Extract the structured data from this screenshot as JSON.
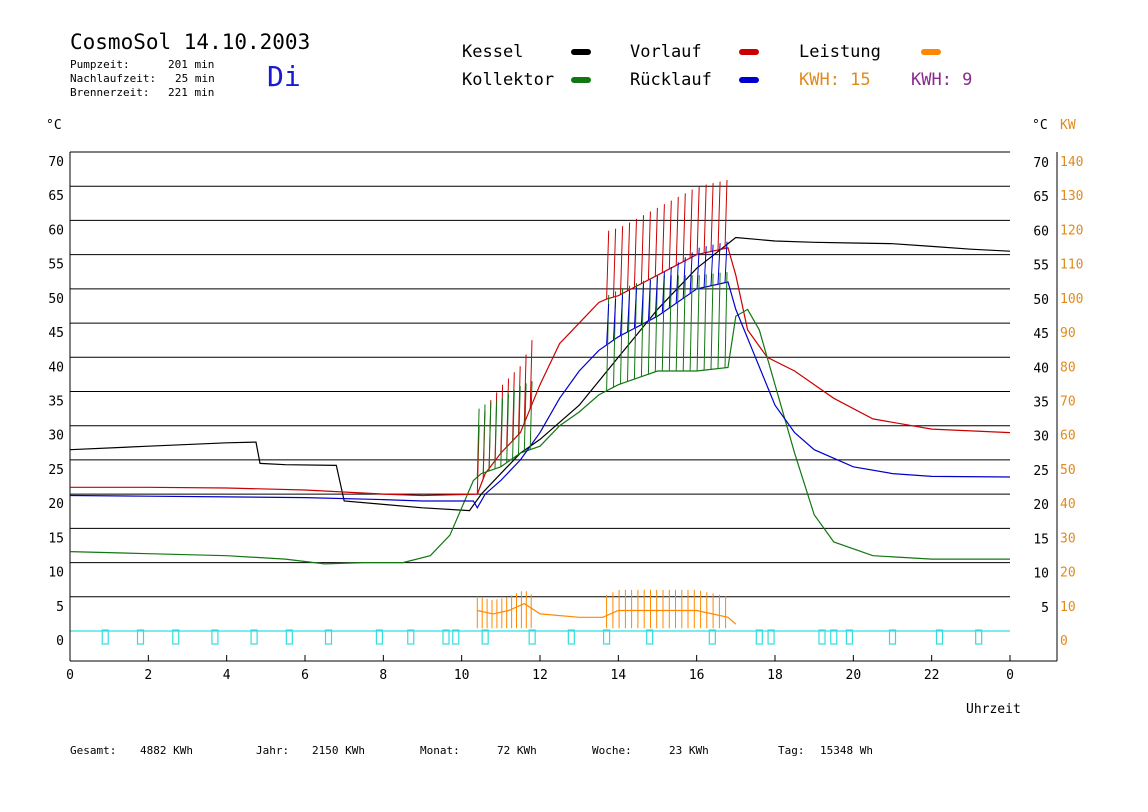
{
  "header": {
    "title": "CosmoSol 14.10.2003",
    "day": "Di",
    "stats": [
      {
        "label": "Pumpzeit:",
        "value": "201 min"
      },
      {
        "label": "Nachlaufzeit:",
        "value": "25 min"
      },
      {
        "label": "Brennerzeit:",
        "value": "221 min"
      }
    ]
  },
  "legend": {
    "items": [
      {
        "label": "Kessel",
        "color": "#000000"
      },
      {
        "label": "Vorlauf",
        "color": "#cc0000"
      },
      {
        "label": "Leistung",
        "color": "#ff8800"
      },
      {
        "label": "Kollektor",
        "color": "#117711"
      },
      {
        "label": "Rücklauf",
        "color": "#0000cc"
      }
    ],
    "kwh": [
      {
        "text": "KWH: 15",
        "color": "#e08a1e"
      },
      {
        "text": "KWH: 9",
        "color": "#8a2a8a"
      }
    ]
  },
  "axes": {
    "left_unit": "°C",
    "right_unit": "°C",
    "right_unit2": "KW",
    "x_label": "Uhrzeit"
  },
  "footer": [
    {
      "label": "Gesamt:",
      "value": "4882 KWh"
    },
    {
      "label": "Jahr:",
      "value": "2150 KWh"
    },
    {
      "label": "Monat:",
      "value": "72 KWh"
    },
    {
      "label": "Woche:",
      "value": "23 KWh"
    },
    {
      "label": "Tag:",
      "value": "15348 Wh"
    }
  ],
  "chart_data": {
    "type": "line",
    "xlim": [
      0,
      24
    ],
    "ylim": [
      0,
      70
    ],
    "y2lim": [
      0,
      140
    ],
    "x_ticks": [
      "0",
      "2",
      "4",
      "6",
      "8",
      "10",
      "12",
      "14",
      "16",
      "18",
      "20",
      "22",
      "0"
    ],
    "y_ticks": [
      "0",
      "5",
      "10",
      "15",
      "20",
      "25",
      "30",
      "35",
      "40",
      "45",
      "50",
      "55",
      "60",
      "65",
      "70"
    ],
    "y_ticks_right": [
      "5",
      "10",
      "15",
      "20",
      "25",
      "30",
      "35",
      "40",
      "45",
      "50",
      "55",
      "60",
      "65",
      "70"
    ],
    "y2_ticks": [
      "0",
      "10",
      "20",
      "30",
      "40",
      "50",
      "60",
      "70",
      "80",
      "90",
      "100",
      "110",
      "120",
      "130",
      "140"
    ],
    "grid": true,
    "series": [
      {
        "name": "Kessel",
        "color": "#000000",
        "points": [
          [
            0,
            26.5
          ],
          [
            2,
            27
          ],
          [
            4,
            27.5
          ],
          [
            4.75,
            27.6
          ],
          [
            4.85,
            24.5
          ],
          [
            5.5,
            24.3
          ],
          [
            6.8,
            24.2
          ],
          [
            7,
            19
          ],
          [
            8,
            18.5
          ],
          [
            9,
            18
          ],
          [
            10.2,
            17.6
          ],
          [
            10.5,
            20
          ],
          [
            11,
            23
          ],
          [
            11.5,
            26
          ],
          [
            12,
            28
          ],
          [
            13,
            33
          ],
          [
            14,
            40
          ],
          [
            15,
            47
          ],
          [
            16,
            53
          ],
          [
            17,
            57.5
          ],
          [
            18,
            57
          ],
          [
            19,
            56.8
          ],
          [
            20,
            56.7
          ],
          [
            21,
            56.6
          ],
          [
            22,
            56.2
          ],
          [
            23,
            55.8
          ],
          [
            24,
            55.5
          ]
        ]
      },
      {
        "name": "Vorlauf",
        "color": "#cc0000",
        "points": [
          [
            0,
            21
          ],
          [
            2,
            21
          ],
          [
            4,
            20.9
          ],
          [
            6,
            20.6
          ],
          [
            8,
            20
          ],
          [
            9,
            19.8
          ],
          [
            10.4,
            20
          ],
          [
            10.6,
            23
          ],
          [
            11,
            26
          ],
          [
            11.5,
            29
          ],
          [
            12,
            36
          ],
          [
            12.5,
            42
          ],
          [
            13,
            45
          ],
          [
            13.5,
            48
          ],
          [
            13.7,
            48.5
          ],
          [
            14,
            49
          ],
          [
            15,
            52
          ],
          [
            16,
            55
          ],
          [
            16.8,
            56
          ],
          [
            17,
            52
          ],
          [
            17.3,
            44
          ],
          [
            17.8,
            40
          ],
          [
            18.5,
            38
          ],
          [
            19.5,
            34
          ],
          [
            20.5,
            31
          ],
          [
            22,
            29.5
          ],
          [
            24,
            29
          ]
        ]
      },
      {
        "name": "Kollektor",
        "color": "#117711",
        "points": [
          [
            0,
            11.6
          ],
          [
            2,
            11.3
          ],
          [
            4,
            11
          ],
          [
            5.5,
            10.5
          ],
          [
            6.5,
            9.8
          ],
          [
            7.5,
            10
          ],
          [
            8.5,
            10
          ],
          [
            9.2,
            11
          ],
          [
            9.7,
            14
          ],
          [
            10,
            18
          ],
          [
            10.3,
            22
          ],
          [
            10.5,
            23
          ],
          [
            11,
            24
          ],
          [
            11.5,
            26
          ],
          [
            12,
            27
          ],
          [
            12.5,
            30
          ],
          [
            13,
            32
          ],
          [
            13.5,
            34.5
          ],
          [
            14,
            36
          ],
          [
            15,
            38
          ],
          [
            16,
            38
          ],
          [
            16.8,
            38.5
          ],
          [
            17,
            46
          ],
          [
            17.3,
            47
          ],
          [
            17.6,
            44
          ],
          [
            18,
            36
          ],
          [
            18.5,
            26
          ],
          [
            19,
            17
          ],
          [
            19.5,
            13
          ],
          [
            20.5,
            11
          ],
          [
            22,
            10.5
          ],
          [
            24,
            10.5
          ]
        ]
      },
      {
        "name": "Rücklauf",
        "color": "#0000cc",
        "points": [
          [
            0,
            19.8
          ],
          [
            2,
            19.7
          ],
          [
            4,
            19.6
          ],
          [
            6,
            19.5
          ],
          [
            8,
            19.2
          ],
          [
            9,
            19
          ],
          [
            10.3,
            19
          ],
          [
            10.4,
            18
          ],
          [
            10.6,
            20
          ],
          [
            11,
            22
          ],
          [
            11.5,
            25
          ],
          [
            12,
            29
          ],
          [
            12.5,
            34
          ],
          [
            13,
            38
          ],
          [
            13.5,
            41
          ],
          [
            14,
            43
          ],
          [
            15,
            46
          ],
          [
            16,
            50
          ],
          [
            16.8,
            51
          ],
          [
            17,
            47
          ],
          [
            17.5,
            40
          ],
          [
            18,
            33
          ],
          [
            18.5,
            29
          ],
          [
            19,
            26.5
          ],
          [
            20,
            24
          ],
          [
            21,
            23
          ],
          [
            22,
            22.6
          ],
          [
            24,
            22.5
          ]
        ]
      },
      {
        "name": "Leistung",
        "color": "#ff8800",
        "points": [
          [
            10.4,
            3
          ],
          [
            10.8,
            2.5
          ],
          [
            11.2,
            3
          ],
          [
            11.6,
            4
          ],
          [
            12,
            2.5
          ],
          [
            13,
            2
          ],
          [
            13.6,
            2
          ],
          [
            14,
            3
          ],
          [
            15,
            3
          ],
          [
            16,
            3
          ],
          [
            16.8,
            2
          ],
          [
            17,
            1
          ]
        ]
      }
    ]
  }
}
